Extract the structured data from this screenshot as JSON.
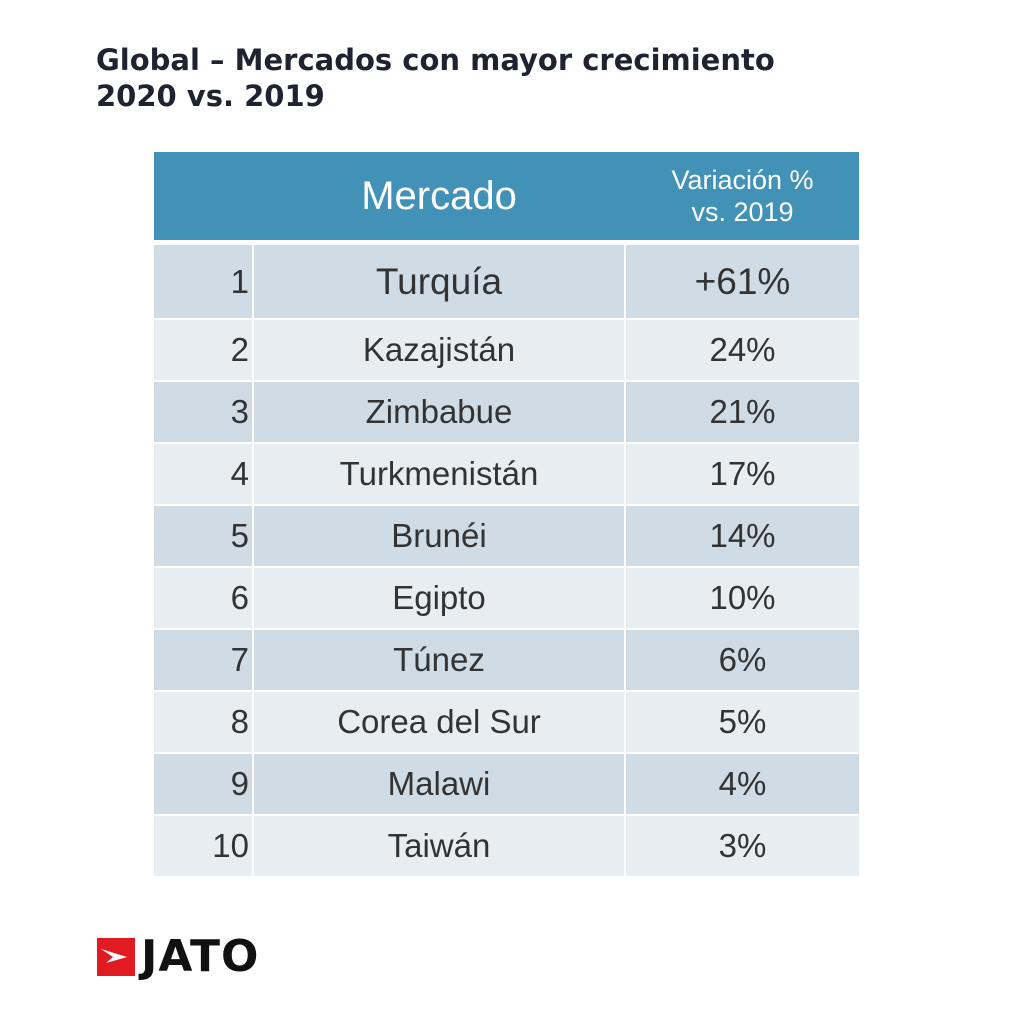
{
  "title": {
    "line1": "Global – Mercados con mayor crecimiento",
    "line2": "2020 vs. 2019"
  },
  "table": {
    "headers": {
      "rank": "",
      "market": "Mercado",
      "variation_line1": "Variación %",
      "variation_line2": "vs. 2019"
    },
    "rows": [
      {
        "rank": "1",
        "market": "Turquía",
        "variation": "+61%"
      },
      {
        "rank": "2",
        "market": "Kazajistán",
        "variation": "24%"
      },
      {
        "rank": "3",
        "market": "Zimbabue",
        "variation": "21%"
      },
      {
        "rank": "4",
        "market": "Turkmenistán",
        "variation": "17%"
      },
      {
        "rank": "5",
        "market": "Brunéi",
        "variation": "14%"
      },
      {
        "rank": "6",
        "market": "Egipto",
        "variation": "10%"
      },
      {
        "rank": "7",
        "market": "Túnez",
        "variation": "6%"
      },
      {
        "rank": "8",
        "market": "Corea del Sur",
        "variation": "5%"
      },
      {
        "rank": "9",
        "market": "Malawi",
        "variation": "4%"
      },
      {
        "rank": "10",
        "market": "Taiwán",
        "variation": "3%"
      }
    ]
  },
  "chart_data": {
    "type": "table",
    "title": "Global – Mercados con mayor crecimiento 2020 vs. 2019",
    "columns": [
      "",
      "Mercado",
      "Variación % vs. 2019"
    ],
    "rows": [
      [
        1,
        "Turquía",
        "+61%"
      ],
      [
        2,
        "Kazajistán",
        "24%"
      ],
      [
        3,
        "Zimbabue",
        "21%"
      ],
      [
        4,
        "Turkmenistán",
        "17%"
      ],
      [
        5,
        "Brunéi",
        "14%"
      ],
      [
        6,
        "Egipto",
        "10%"
      ],
      [
        7,
        "Túnez",
        "6%"
      ],
      [
        8,
        "Corea del Sur",
        "5%"
      ],
      [
        9,
        "Malawi",
        "4%"
      ],
      [
        10,
        "Taiwán",
        "3%"
      ]
    ]
  },
  "logo": {
    "text": "JATO",
    "icon": "jato-logo-mark",
    "icon_color": "#e11b22"
  },
  "colors": {
    "header_bg": "#4292b8",
    "row_dark": "#cfdbe5",
    "row_light": "#e7edf1",
    "title_text": "#1f2330"
  }
}
